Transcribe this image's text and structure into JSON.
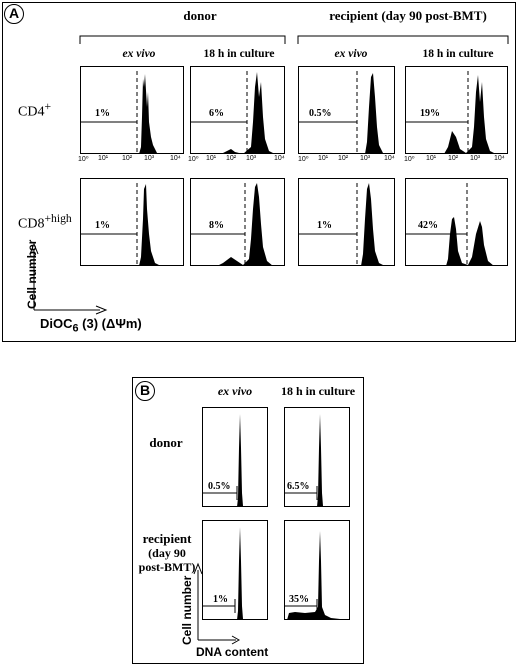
{
  "panel_a": {
    "label": "A",
    "group_donor": "donor",
    "group_recipient": "recipient (day 90 post-BMT)",
    "col_ex_vivo": "ex vivo",
    "col_culture": "18 h in culture",
    "row_cd4": "CD4+",
    "row_cd8": "CD8+high",
    "y_axis": "Cell number",
    "x_axis": "DiOC6 (3) (ΔΨm)",
    "ticks": [
      "10⁰",
      "10¹",
      "10²",
      "10³",
      "10⁴"
    ],
    "percents": {
      "cd4_donor_exvivo": "1%",
      "cd4_donor_culture": "6%",
      "cd4_recip_exvivo": "0.5%",
      "cd4_recip_culture": "19%",
      "cd8_donor_exvivo": "1%",
      "cd8_donor_culture": "8%",
      "cd8_recip_exvivo": "1%",
      "cd8_recip_culture": "42%"
    }
  },
  "panel_b": {
    "label": "B",
    "col_ex_vivo": "ex vivo",
    "col_culture": "18 h in culture",
    "row_donor": "donor",
    "row_recipient_l1": "recipient",
    "row_recipient_l2": "(day 90",
    "row_recipient_l3": "post-BMT)",
    "y_axis": "Cell number",
    "x_axis": "DNA content",
    "percents": {
      "donor_exvivo": "0.5%",
      "donor_culture": "6.5%",
      "recip_exvivo": "1%",
      "recip_culture": "35%"
    }
  }
}
